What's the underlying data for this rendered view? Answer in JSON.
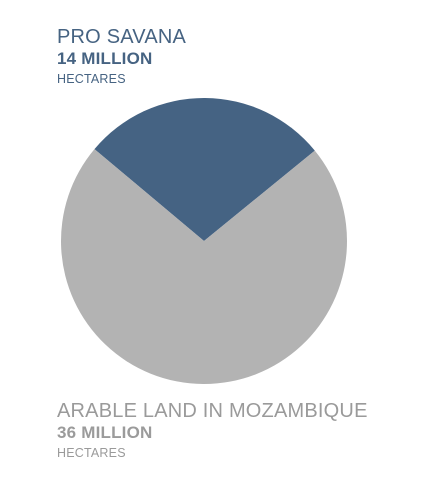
{
  "colors": {
    "pro_savana": "#456383",
    "arable_land": "#b3b3b3",
    "pro_savana_text": "#466382",
    "arable_land_text": "#9a9a9a"
  },
  "labels": {
    "pro_savana": {
      "title": "PRO SAVANA",
      "value": "14 MILLION",
      "unit": "HECTARES"
    },
    "arable_land": {
      "title": "ARABLE LAND IN MOZAMBIQUE",
      "value": "36 MILLION",
      "unit": "HECTARES"
    }
  },
  "chart_data": {
    "type": "pie",
    "title": "",
    "unit": "million hectares",
    "slices": [
      {
        "name": "PRO SAVANA",
        "value": 14,
        "color": "#456383"
      },
      {
        "name": "ARABLE LAND IN MOZAMBIQUE",
        "value": 36,
        "color": "#b3b3b3"
      }
    ],
    "start_angle_deg": -50,
    "legend_position": "top-left and bottom-left"
  }
}
